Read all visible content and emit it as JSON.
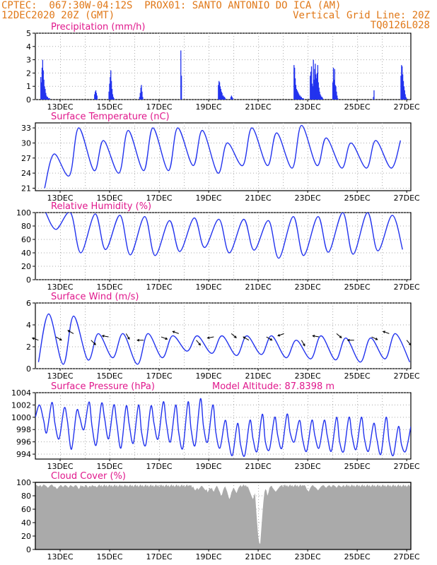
{
  "header": {
    "left_line1": "CPTEC:  067:30W-04:12S  PROX01: SANTO ANTONIO DO ICA (AM)",
    "left_line2": "12DEC2020 20Z (GMT)",
    "right_line2": "Vertical Grid Line: 20Z",
    "right_line3": "TQ0126L028"
  },
  "colors": {
    "header": "#e07818",
    "title": "#e0188c",
    "series": "#2233ee",
    "cloud": "#aaaaaa",
    "grid": "#aaaaaa"
  },
  "x_tick_labels": [
    "13DEC",
    "15DEC",
    "17DEC",
    "19DEC",
    "21DEC",
    "23DEC",
    "25DEC",
    "27DEC"
  ],
  "chart_data": [
    {
      "type": "bar",
      "title": "Precipitation (mm/h)",
      "ylim": [
        0,
        5
      ],
      "yticks": [
        "0",
        "1",
        "2",
        "3",
        "4",
        "5"
      ],
      "x": "hours since 12DEC2020 20Z (hourly)",
      "events": [
        {
          "h": [
            8,
            9,
            10,
            11,
            12,
            13,
            14,
            15,
            16,
            17,
            18,
            19,
            20,
            21,
            22
          ],
          "v": [
            1.7,
            1.3,
            2.4,
            3.0,
            2.2,
            1.5,
            1.0,
            0.8,
            0.5,
            0.3,
            0.2,
            0.2,
            0.1,
            0.1,
            0.1
          ]
        },
        {
          "h": [
            94,
            95,
            96,
            97,
            98
          ],
          "v": [
            0.4,
            0.6,
            0.7,
            0.5,
            0.3
          ]
        },
        {
          "h": [
            117,
            118,
            119,
            120,
            121,
            122,
            123,
            124,
            125
          ],
          "v": [
            0.6,
            1.2,
            1.7,
            2.2,
            1.4,
            0.8,
            0.4,
            0.2,
            0.1
          ]
        },
        {
          "h": [
            166,
            167,
            168,
            169,
            170,
            171
          ],
          "v": [
            0.2,
            0.5,
            0.9,
            1.1,
            0.6,
            0.2
          ]
        },
        {
          "h": [
            232,
            233
          ],
          "v": [
            3.7,
            1.8
          ]
        },
        {
          "h": [
            292,
            293,
            294,
            295,
            296,
            297,
            298,
            299,
            300,
            301,
            302,
            303
          ],
          "v": [
            1.1,
            1.4,
            1.3,
            1.0,
            0.8,
            0.6,
            0.5,
            0.3,
            0.3,
            0.2,
            0.2,
            0.1
          ]
        },
        {
          "h": [
            312,
            313,
            314,
            315
          ],
          "v": [
            0.2,
            0.3,
            0.2,
            0.1
          ]
        },
        {
          "h": [
            413,
            414,
            415,
            416,
            417,
            418,
            419,
            420,
            421,
            422,
            423,
            424,
            425,
            426,
            427,
            428
          ],
          "v": [
            2.6,
            2.4,
            1.6,
            1.1,
            0.8,
            0.7,
            0.6,
            0.5,
            0.4,
            0.3,
            0.3,
            0.2,
            0.2,
            0.1,
            0.1,
            0.1
          ]
        },
        {
          "h": [
            439,
            440,
            441,
            442,
            443,
            444,
            445,
            446,
            447,
            448,
            449,
            450,
            451,
            452,
            453,
            454,
            455,
            456,
            457,
            458,
            459
          ],
          "v": [
            1.8,
            2.1,
            2.5,
            1.2,
            1.0,
            3.0,
            1.5,
            2.3,
            2.7,
            1.9,
            1.6,
            2.0,
            2.6,
            1.3,
            0.9,
            0.6,
            0.4,
            0.3,
            0.2,
            0.2,
            0.1
          ]
        },
        {
          "h": [
            475,
            476,
            477,
            478,
            479,
            480,
            481,
            482,
            483
          ],
          "v": [
            1.3,
            2.4,
            1.5,
            2.3,
            1.1,
            1.0,
            0.6,
            0.3,
            0.1
          ]
        },
        {
          "h": [
            540,
            541
          ],
          "v": [
            0.2,
            0.7
          ]
        },
        {
          "h": [
            584,
            585,
            586,
            587,
            588,
            589,
            590,
            591,
            592,
            593
          ],
          "v": [
            1.8,
            2.6,
            2.5,
            1.9,
            1.4,
            1.0,
            0.7,
            0.4,
            0.2,
            0.1
          ]
        }
      ]
    },
    {
      "type": "line",
      "title": "Surface Temperature (nC)",
      "ylim": [
        20.5,
        34
      ],
      "yticks": [
        "21",
        "24",
        "27",
        "30",
        "33"
      ],
      "daily_max": [
        27.8,
        33.0,
        30.5,
        32.5,
        33.0,
        33.0,
        32.5,
        30.0,
        33.0,
        32.0,
        33.5,
        31.0,
        30.0,
        30.5,
        30.5,
        32.0,
        33.5
      ],
      "daily_min": [
        21.0,
        23.5,
        24.5,
        24.0,
        24.5,
        24.5,
        25.5,
        24.0,
        25.5,
        25.5,
        25.0,
        25.5,
        25.0,
        25.0,
        25.0,
        25.0
      ]
    },
    {
      "type": "line",
      "title": "Relative Humidity (%)",
      "ylim": [
        0,
        100
      ],
      "yticks": [
        "0",
        "20",
        "40",
        "60",
        "80",
        "100"
      ],
      "daily_max": [
        100,
        100,
        98,
        96,
        94,
        88,
        92,
        90,
        90,
        88,
        94,
        94,
        100,
        100,
        96,
        98
      ],
      "daily_min": [
        75,
        40,
        45,
        37,
        36,
        42,
        48,
        40,
        44,
        32,
        36,
        41,
        38,
        43,
        45,
        37,
        45
      ]
    },
    {
      "type": "line",
      "title": "Surface Wind (m/s)",
      "ylim": [
        0,
        6
      ],
      "yticks": [
        "0",
        "2",
        "4",
        "6"
      ],
      "daily_max": [
        5.0,
        4.8,
        3.2,
        3.2,
        3.2,
        3.0,
        3.0,
        3.0,
        3.0,
        3.0,
        2.6,
        3.0,
        2.8,
        2.8,
        3.2,
        3.6
      ],
      "daily_min": [
        0.6,
        0.4,
        0.8,
        1.0,
        0.4,
        1.0,
        1.6,
        1.4,
        1.2,
        1.3,
        1.0,
        0.9,
        0.8,
        0.6,
        0.9,
        0.6
      ]
    },
    {
      "type": "line",
      "title": "Surface Pressure (hPa)",
      "annotation": "Model Altitude: 87.8398 m",
      "ylim": [
        993.2,
        1004
      ],
      "yticks": [
        "994",
        "996",
        "998",
        "1000",
        "1002",
        "1004"
      ],
      "x_hours": [
        0,
        4,
        8,
        11,
        16,
        19,
        23,
        28,
        31,
        35,
        40,
        43,
        47,
        52,
        55,
        59,
        64,
        67,
        71,
        76,
        79,
        83,
        88,
        91,
        95,
        100,
        103,
        107,
        112,
        115,
        119,
        124,
        127,
        131,
        136,
        139,
        143,
        148,
        151,
        155,
        160,
        163,
        167,
        172,
        175,
        179,
        184,
        187,
        191,
        196,
        199,
        203,
        208,
        211,
        215,
        220,
        223,
        227,
        232,
        235,
        239,
        244,
        247,
        251,
        256,
        259,
        263,
        268,
        271,
        275,
        280,
        283,
        287,
        292,
        295,
        299,
        304,
        307,
        311,
        316,
        319,
        323,
        328,
        331,
        335,
        340,
        343,
        347,
        352,
        355,
        359,
        364,
        367,
        371,
        376,
        379
      ],
      "values": [
        1000.0,
        1002.0,
        999.5,
        997.5,
        1002.4,
        999.0,
        996.5,
        1001.5,
        999.5,
        994.8,
        1001.0,
        1000.0,
        998.0,
        1002.5,
        998.5,
        995.5,
        1002.2,
        1000.0,
        996.5,
        1002.0,
        999.0,
        995.0,
        1001.8,
        998.8,
        995.8,
        1002.0,
        997.5,
        995.5,
        1001.8,
        999.0,
        996.5,
        1002.5,
        999.0,
        996.0,
        1002.0,
        997.5,
        995.0,
        1002.5,
        998.0,
        995.5,
        1003.0,
        998.5,
        996.0,
        1002.0,
        997.5,
        995.0,
        999.5,
        996.5,
        993.8,
        999.0,
        995.5,
        993.8,
        999.5,
        996.5,
        994.5,
        1000.5,
        996.0,
        994.8,
        1000.0,
        997.0,
        995.0,
        1000.5,
        997.5,
        996.0,
        999.5,
        996.5,
        994.5,
        999.5,
        997.0,
        995.0,
        999.5,
        997.0,
        994.5,
        1000.0,
        996.0,
        994.5,
        1000.0,
        997.0,
        994.8,
        1000.0,
        996.5,
        994.5,
        999.0,
        996.5,
        994.0,
        1000.0,
        996.0,
        993.8,
        998.5,
        995.5,
        994.5,
        998.5,
        995.5,
        993.8,
        992.5,
        995.5
      ]
    },
    {
      "type": "area",
      "title": "Cloud Cover (%)",
      "ylim": [
        0,
        100
      ],
      "yticks": [
        "0",
        "20",
        "40",
        "60",
        "80",
        "100"
      ],
      "base_level": 95,
      "dips": [
        {
          "start": 0,
          "end": 40,
          "v": [
            97,
            96,
            95,
            94,
            95,
            96,
            93,
            95,
            97,
            96,
            95,
            94,
            92,
            93,
            95,
            96,
            97,
            95,
            93,
            94,
            92,
            90,
            92,
            94,
            95,
            96,
            94,
            93,
            95,
            96,
            95,
            94,
            92,
            94,
            96,
            95,
            94,
            93,
            95,
            96
          ]
        },
        {
          "start": 40,
          "end": 60,
          "v": [
            95,
            93,
            90,
            92,
            96,
            94,
            95,
            93,
            94,
            96,
            95,
            92,
            94,
            95,
            93,
            96,
            95,
            94,
            95,
            93
          ]
        },
        {
          "start": 150,
          "end": 170,
          "v": [
            95,
            96,
            92,
            94,
            90,
            88,
            90,
            92,
            89,
            91,
            93,
            95,
            94,
            92,
            90,
            88,
            90,
            85,
            88,
            92
          ]
        },
        {
          "start": 170,
          "end": 200,
          "v": [
            90,
            92,
            88,
            86,
            90,
            93,
            95,
            92,
            88,
            85,
            80,
            82,
            88,
            92,
            94,
            90,
            86,
            80,
            75,
            78,
            85,
            88,
            92,
            90,
            87,
            84,
            88,
            92,
            94,
            96
          ]
        },
        {
          "start": 206,
          "end": 228,
          "v": [
            94,
            90,
            86,
            82,
            78,
            75,
            80,
            84,
            60,
            40,
            20,
            10,
            8,
            30,
            50,
            70,
            85,
            90,
            88,
            80,
            85,
            92
          ]
        },
        {
          "start": 229,
          "end": 240,
          "v": [
            95,
            92,
            90,
            88,
            86,
            88,
            90,
            92,
            94,
            95,
            96
          ]
        },
        {
          "start": 260,
          "end": 300,
          "v": [
            95,
            96,
            94,
            90,
            88,
            86,
            90,
            93,
            95,
            96,
            94,
            93,
            92,
            90,
            88,
            90,
            92,
            94,
            95,
            96,
            95,
            93,
            92,
            94,
            95,
            96,
            94,
            93,
            95,
            96,
            95,
            94,
            92,
            94,
            96,
            95,
            94,
            93,
            95,
            96
          ]
        }
      ]
    }
  ],
  "panel_titles": {
    "precip": "Precipitation (mm/h)",
    "temp": "Surface Temperature (nC)",
    "rh": "Relative Humidity (%)",
    "wind": "Surface Wind (m/s)",
    "pres": "Surface Pressure (hPa)",
    "altitude": "Model Altitude: 87.8398 m",
    "cloud": "Cloud Cover (%)"
  }
}
